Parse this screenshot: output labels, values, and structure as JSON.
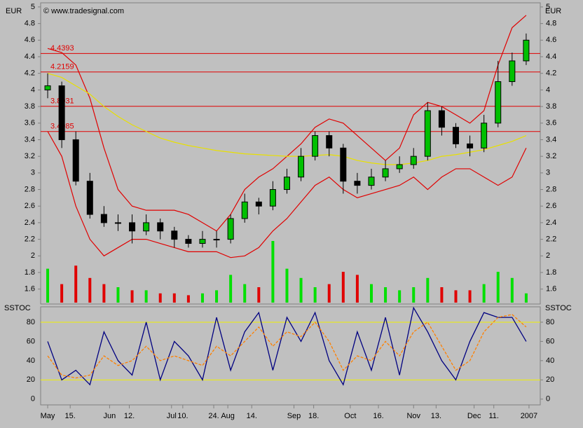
{
  "chart_data": [
    {
      "type": "candlestick",
      "currency": "EUR",
      "currency_right": "EUR",
      "copyright": "© www.tradesignal.com",
      "xlim": [
        0,
        35.5
      ],
      "xticks": [
        {
          "value": 0.5,
          "label": "May"
        },
        {
          "value": 2.1,
          "label": "15."
        },
        {
          "value": 4.9,
          "label": "Jun"
        },
        {
          "value": 6.3,
          "label": "12."
        },
        {
          "value": 9.3,
          "label": "Jul"
        },
        {
          "value": 10.1,
          "label": "10."
        },
        {
          "value": 12.3,
          "label": "24."
        },
        {
          "value": 13.3,
          "label": "Aug"
        },
        {
          "value": 15,
          "label": "14."
        },
        {
          "value": 18,
          "label": "Sep"
        },
        {
          "value": 19.4,
          "label": "18."
        },
        {
          "value": 22,
          "label": "Oct"
        },
        {
          "value": 24,
          "label": "16."
        },
        {
          "value": 26.5,
          "label": "Nov"
        },
        {
          "value": 28.1,
          "label": "13."
        },
        {
          "value": 30.8,
          "label": "Dec"
        },
        {
          "value": 32.2,
          "label": "11."
        },
        {
          "value": 34.7,
          "label": "2007"
        }
      ],
      "ylim": [
        1.42,
        5.05
      ],
      "yticks": [
        1.6,
        1.8,
        2,
        2.2,
        2.4,
        2.6,
        2.8,
        3,
        3.2,
        3.4,
        3.6,
        3.8,
        4,
        4.2,
        4.4,
        4.6,
        4.8,
        5
      ],
      "x": [
        0.5,
        1.5,
        2.5,
        3.5,
        4.5,
        5.5,
        6.5,
        7.5,
        8.5,
        9.5,
        10.5,
        11.5,
        12.5,
        13.5,
        14.5,
        15.5,
        16.5,
        17.5,
        18.5,
        19.5,
        20.5,
        21.5,
        22.5,
        23.5,
        24.5,
        25.5,
        26.5,
        27.5,
        28.5,
        29.5,
        30.5,
        31.5,
        32.5,
        33.5,
        34.5
      ],
      "open": [
        4.0,
        4.05,
        3.4,
        2.9,
        2.5,
        2.4,
        2.4,
        2.3,
        2.4,
        2.3,
        2.2,
        2.15,
        2.2,
        2.2,
        2.45,
        2.65,
        2.6,
        2.8,
        2.95,
        3.2,
        3.45,
        3.3,
        2.9,
        2.85,
        2.95,
        3.05,
        3.1,
        3.2,
        3.75,
        3.55,
        3.35,
        3.3,
        3.6,
        4.1,
        4.35
      ],
      "high": [
        4.2,
        4.1,
        3.5,
        3.0,
        2.6,
        2.5,
        2.5,
        2.5,
        2.45,
        2.35,
        2.25,
        2.3,
        2.3,
        2.5,
        2.75,
        2.7,
        2.9,
        3.05,
        3.3,
        3.5,
        3.5,
        3.35,
        3.0,
        3.05,
        3.15,
        3.2,
        3.3,
        3.85,
        3.8,
        3.6,
        3.45,
        3.7,
        4.35,
        4.45,
        4.68
      ],
      "low": [
        3.9,
        3.3,
        2.85,
        2.45,
        2.35,
        2.3,
        2.15,
        2.25,
        2.2,
        2.1,
        2.1,
        2.1,
        2.1,
        2.15,
        2.4,
        2.5,
        2.55,
        2.75,
        2.9,
        3.15,
        3.2,
        2.75,
        2.75,
        2.8,
        2.9,
        3.0,
        3.05,
        3.15,
        3.45,
        3.3,
        3.2,
        3.25,
        3.55,
        4.05,
        4.3
      ],
      "close": [
        4.05,
        3.4,
        2.9,
        2.5,
        2.4,
        2.4,
        2.3,
        2.4,
        2.3,
        2.2,
        2.15,
        2.2,
        2.2,
        2.45,
        2.65,
        2.6,
        2.8,
        2.95,
        3.2,
        3.45,
        3.3,
        2.9,
        2.85,
        2.95,
        3.05,
        3.1,
        3.2,
        3.75,
        3.55,
        3.35,
        3.3,
        3.6,
        4.1,
        4.35,
        4.6
      ],
      "up_color": "#00c000",
      "down_color": "#000000",
      "bands": [
        {
          "color": "#e00000",
          "values": [
            4.5,
            4.45,
            4.3,
            3.9,
            3.3,
            2.8,
            2.6,
            2.55,
            2.55,
            2.55,
            2.5,
            2.4,
            2.3,
            2.5,
            2.8,
            2.95,
            3.05,
            3.2,
            3.35,
            3.55,
            3.65,
            3.6,
            3.45,
            3.3,
            3.15,
            3.3,
            3.7,
            3.85,
            3.8,
            3.7,
            3.6,
            3.75,
            4.3,
            4.75,
            4.9
          ]
        },
        {
          "color": "#e00000",
          "values": [
            3.5,
            3.2,
            2.6,
            2.2,
            2.0,
            2.1,
            2.2,
            2.2,
            2.15,
            2.1,
            2.05,
            2.05,
            2.05,
            1.98,
            2.0,
            2.1,
            2.3,
            2.45,
            2.65,
            2.85,
            2.95,
            2.8,
            2.7,
            2.75,
            2.8,
            2.85,
            2.95,
            2.8,
            2.95,
            3.05,
            3.05,
            2.95,
            2.85,
            2.95,
            3.3
          ]
        },
        {
          "color": "#e8e000",
          "values": [
            4.2,
            4.15,
            4.05,
            3.95,
            3.8,
            3.68,
            3.58,
            3.5,
            3.42,
            3.37,
            3.33,
            3.3,
            3.27,
            3.25,
            3.23,
            3.22,
            3.21,
            3.2,
            3.2,
            3.21,
            3.22,
            3.2,
            3.15,
            3.12,
            3.1,
            3.1,
            3.12,
            3.15,
            3.2,
            3.22,
            3.25,
            3.28,
            3.33,
            3.38,
            3.45
          ]
        }
      ],
      "levels": [
        4.4393,
        4.2159,
        3.8031,
        3.4985
      ],
      "level_color": "#e00000",
      "volume": [
        55,
        30,
        60,
        40,
        30,
        25,
        20,
        20,
        15,
        15,
        12,
        15,
        20,
        45,
        30,
        25,
        100,
        55,
        40,
        25,
        30,
        50,
        45,
        30,
        25,
        20,
        25,
        40,
        25,
        20,
        20,
        30,
        50,
        40,
        15
      ]
    },
    {
      "type": "line",
      "title": "SSTOC",
      "title_right": "SSTOC",
      "ylim": [
        -6,
        96
      ],
      "yticks": [
        0,
        20,
        40,
        60,
        80
      ],
      "levels": [
        80,
        20
      ],
      "level_color": "#f0f000",
      "series": [
        {
          "color": "#000080",
          "values": [
            60,
            20,
            30,
            15,
            70,
            40,
            25,
            80,
            20,
            60,
            45,
            20,
            85,
            30,
            70,
            90,
            30,
            85,
            60,
            90,
            40,
            15,
            70,
            30,
            85,
            25,
            95,
            70,
            40,
            20,
            60,
            90,
            85,
            85,
            60
          ]
        },
        {
          "color": "#ff8000",
          "values": [
            45,
            25,
            22,
            25,
            45,
            35,
            40,
            55,
            40,
            45,
            40,
            35,
            55,
            45,
            60,
            75,
            55,
            70,
            65,
            80,
            60,
            30,
            45,
            40,
            60,
            45,
            70,
            80,
            55,
            30,
            40,
            70,
            85,
            88,
            75
          ]
        }
      ]
    }
  ]
}
